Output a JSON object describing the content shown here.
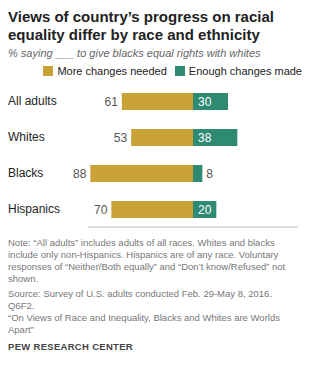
{
  "chart_data": {
    "type": "bar",
    "orientation": "horizontal",
    "title": "Views of country’s progress on racial equality differ by race and ethnicity",
    "subtitle": "% saying ___ to give blacks equal rights with whites",
    "categories": [
      "All adults",
      "Whites",
      "Blacks",
      "Hispanics"
    ],
    "series": [
      {
        "name": "More changes needed",
        "color": "#c9a236",
        "values": [
          61,
          53,
          88,
          70
        ]
      },
      {
        "name": "Enough changes made",
        "color": "#2f8a72",
        "values": [
          30,
          38,
          8,
          20
        ]
      }
    ],
    "xlim": [
      0,
      90
    ],
    "data_labels": true,
    "tick_labels": "y",
    "annotations": [
      "Note: “All adults” includes adults of all races. Whites and blacks include only non-Hispanics. Hispanics are of any race. Voluntary responses of “Neither/Both equally” and “Don’t know/Refused” not shown.",
      "Source: Survey of U.S. adults conducted Feb. 29-May 8, 2016.",
      "Q6F2.",
      "“On Views of Race and Inequality, Blacks and Whites are Worlds Apart”"
    ],
    "credit": "PEW RESEARCH CENTER"
  }
}
